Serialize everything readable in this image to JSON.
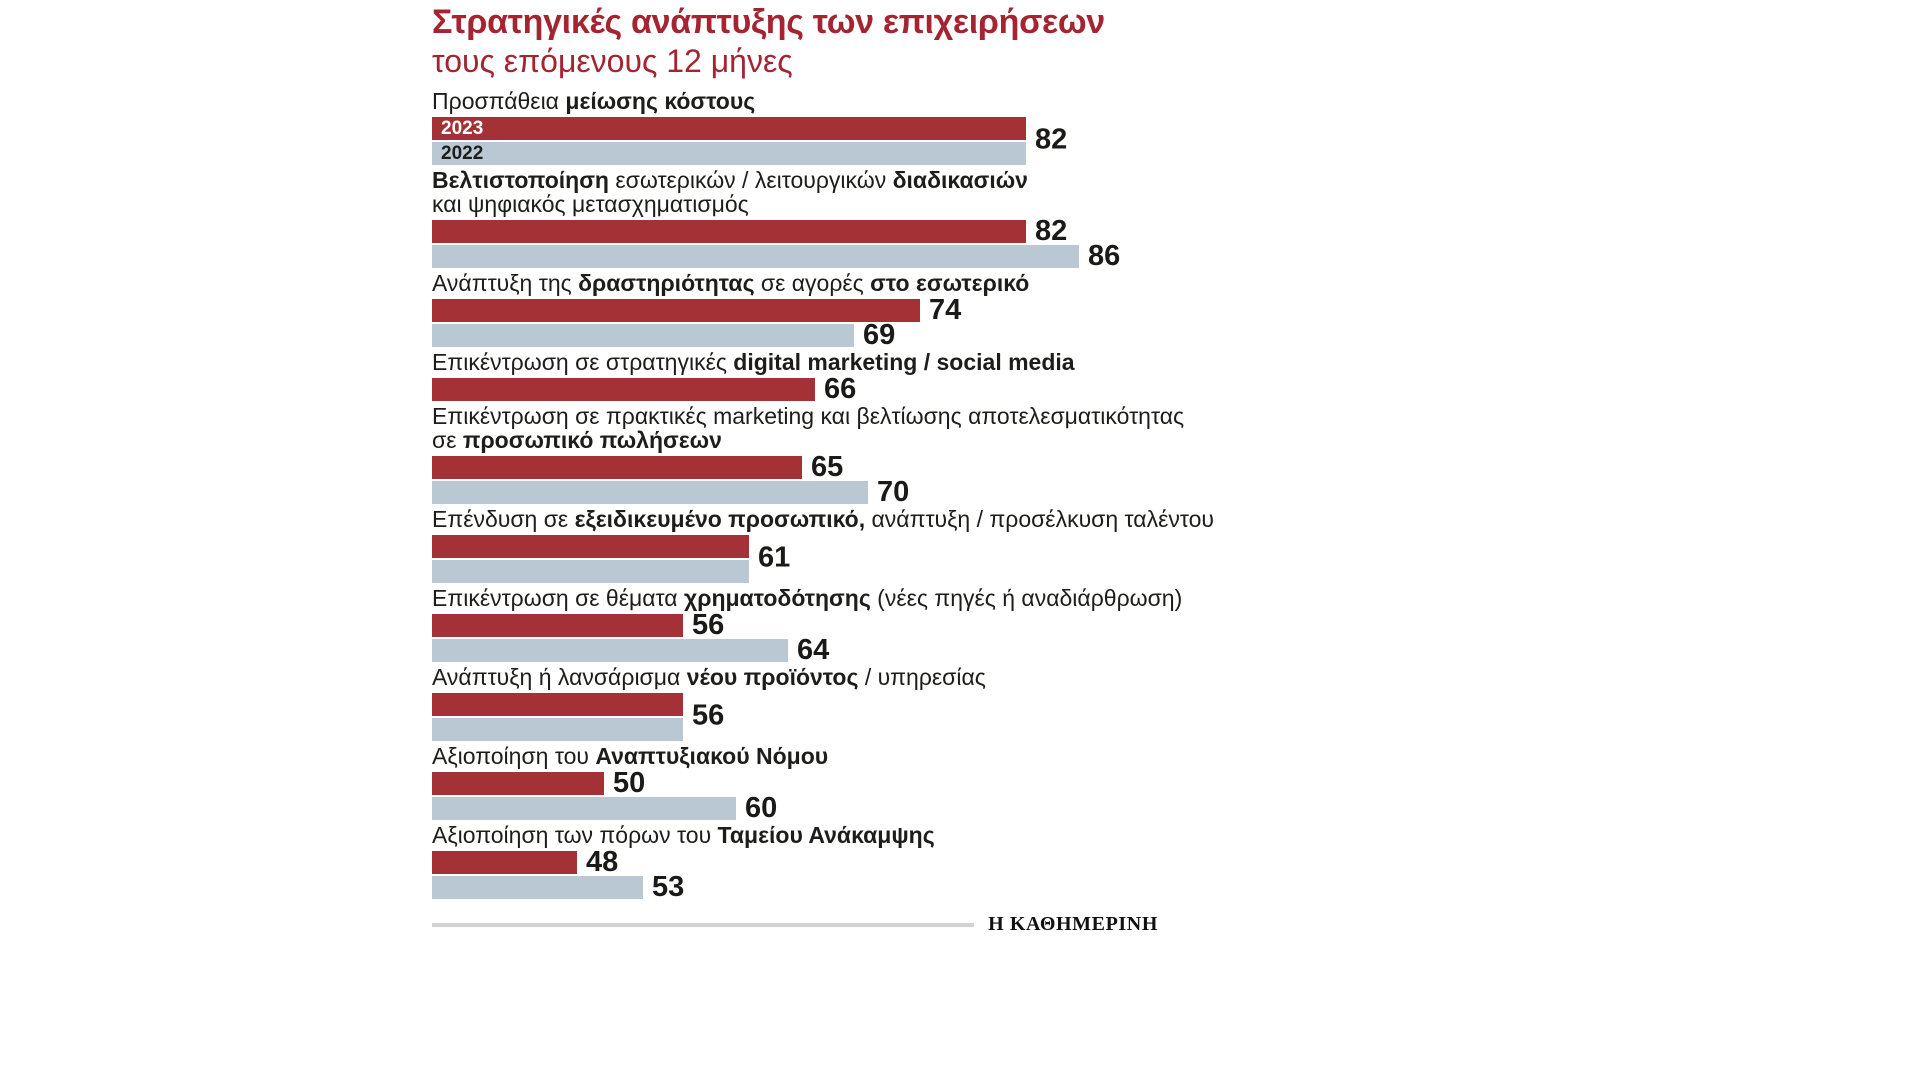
{
  "header": {
    "title": "Στρατηγικές ανάπτυξης των επιχειρήσεων",
    "subtitle": "τους επόμενους 12 μήνες"
  },
  "footer": {
    "source": "Η ΚΑΘΗΜΕΡΙΝΗ"
  },
  "colors": {
    "bar_2023": "#a33136",
    "bar_2022": "#b9c8d2",
    "title_red": "#a42531",
    "text": "#1d1d1b",
    "divider": "#d2d2d2"
  },
  "chart_data": {
    "type": "bar",
    "orientation": "horizontal",
    "title": "Στρατηγικές ανάπτυξης των επιχειρήσεων",
    "subtitle": "τους επόμενους 12 μήνες",
    "series": [
      "2023",
      "2022"
    ],
    "legend_position": "inside-first-bars",
    "grid": false,
    "axis": {
      "value_min_rendered": 37,
      "value_max_rendered": 92
    },
    "categories": [
      {
        "name": "Προσπάθεια μείωσης κόστους",
        "label_lines": [
          [
            {
              "t": "Προσπάθεια ",
              "b": false
            },
            {
              "t": "μείωσης κόστους",
              "b": true
            }
          ]
        ],
        "v2023": 82,
        "v2022": 82,
        "value_label_mode": "shared"
      },
      {
        "name": "Βελτιστοποίηση εσωτερικών / λειτουργικών διαδικασιών και ψηφιακός μετασχηματισμός",
        "label_lines": [
          [
            {
              "t": "Βελτιστοποίηση",
              "b": true
            },
            {
              "t": " εσωτερικών / λειτουργικών ",
              "b": false
            },
            {
              "t": "διαδικασιών",
              "b": true
            }
          ],
          [
            {
              "t": "και ψηφιακός μετασχηματισμός",
              "b": false
            }
          ]
        ],
        "v2023": 82,
        "v2022": 86,
        "value_label_mode": "each"
      },
      {
        "name": "Ανάπτυξη της δραστηριότητας σε αγορές στο εσωτερικό",
        "label_lines": [
          [
            {
              "t": "Ανάπτυξη της ",
              "b": false
            },
            {
              "t": "δραστηριότητας",
              "b": true
            },
            {
              "t": " σε αγορές ",
              "b": false
            },
            {
              "t": "στο εσωτερικό",
              "b": true
            }
          ]
        ],
        "v2023": 74,
        "v2022": 69,
        "value_label_mode": "each"
      },
      {
        "name": "Επικέντρωση σε στρατηγικές digital marketing / social media",
        "label_lines": [
          [
            {
              "t": "Επικέντρωση σε στρατηγικές ",
              "b": false
            },
            {
              "t": "digital marketing / social media",
              "b": true
            }
          ]
        ],
        "v2023": 66,
        "v2022": null,
        "value_label_mode": "each"
      },
      {
        "name": "Επικέντρωση σε πρακτικές marketing και βελτίωσης αποτελεσματικότητας σε προσωπικό πωλήσεων",
        "label_lines": [
          [
            {
              "t": "Επικέντρωση σε πρακτικές marketing και βελτίωσης αποτελεσματικότητας",
              "b": false
            }
          ],
          [
            {
              "t": "σε ",
              "b": false
            },
            {
              "t": "προσωπικό πωλήσεων",
              "b": true
            }
          ]
        ],
        "v2023": 65,
        "v2022": 70,
        "value_label_mode": "each"
      },
      {
        "name": "Επένδυση σε εξειδικευμένο προσωπικό, ανάπτυξη / προσέλκυση ταλέντου",
        "label_lines": [
          [
            {
              "t": "Επένδυση σε ",
              "b": false
            },
            {
              "t": "εξειδικευμένο προσωπικό,",
              "b": true
            },
            {
              "t": " ανάπτυξη / προσέλκυση ταλέντου",
              "b": false
            }
          ]
        ],
        "v2023": 61,
        "v2022": 61,
        "value_label_mode": "shared"
      },
      {
        "name": "Επικέντρωση σε θέματα χρηματοδότησης (νέες πηγές ή αναδιάρθρωση)",
        "label_lines": [
          [
            {
              "t": "Επικέντρωση σε θέματα ",
              "b": false
            },
            {
              "t": "χρηματοδότησης",
              "b": true
            },
            {
              "t": " (νέες πηγές ή αναδιάρθρωση)",
              "b": false
            }
          ]
        ],
        "v2023": 56,
        "v2022": 64,
        "value_label_mode": "each"
      },
      {
        "name": "Ανάπτυξη ή λανσάρισμα νέου προϊόντος / υπηρεσίας",
        "label_lines": [
          [
            {
              "t": "Ανάπτυξη ή λανσάρισμα ",
              "b": false
            },
            {
              "t": "νέου προϊόντος",
              "b": true
            },
            {
              "t": " / υπηρεσίας",
              "b": false
            }
          ]
        ],
        "v2023": 56,
        "v2022": 56,
        "value_label_mode": "shared"
      },
      {
        "name": "Αξιοποίηση του Αναπτυξιακού Νόμου",
        "label_lines": [
          [
            {
              "t": "Αξιοποίηση του ",
              "b": false
            },
            {
              "t": "Αναπτυξιακού Νόμου",
              "b": true
            }
          ]
        ],
        "v2023": 50,
        "v2022": 60,
        "value_label_mode": "each"
      },
      {
        "name": "Αξιοποίηση των πόρων του Ταμείου Ανάκαμψης",
        "label_lines": [
          [
            {
              "t": "Αξιοποίηση των πόρων του ",
              "b": false
            },
            {
              "t": "Ταμείου Ανάκαμψης",
              "b": true
            }
          ]
        ],
        "v2023": 48,
        "v2022": 53,
        "value_label_mode": "each"
      }
    ]
  }
}
